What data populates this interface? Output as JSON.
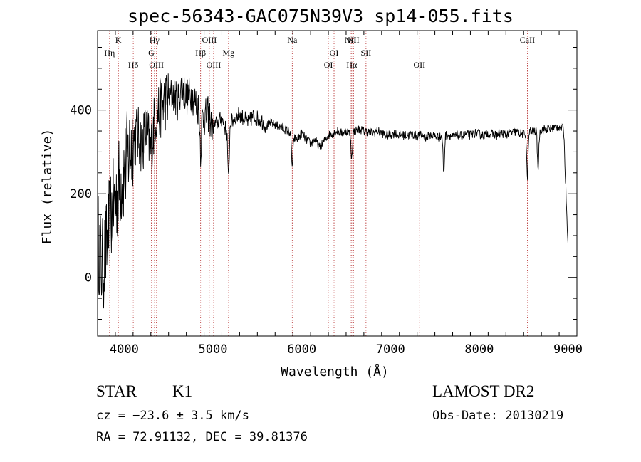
{
  "title": "spec-56343-GAC075N39V3_sp14-055.fits",
  "info": {
    "class": "STAR",
    "subclass": "K1",
    "survey": "LAMOST DR2",
    "cz": "cz = −23.6 ± 3.5 km/s",
    "obs_date": "Obs-Date: 20130219",
    "radec": "RA =  72.91132, DEC =  39.81376"
  },
  "chart_data": {
    "type": "line",
    "xlabel": "Wavelength (Å)",
    "ylabel": "Flux (relative)",
    "xlim": [
      3700,
      9100
    ],
    "ylim": [
      -140,
      590
    ],
    "xticks": [
      4000,
      5000,
      6000,
      7000,
      8000,
      9000
    ],
    "yticks": [
      0,
      200,
      400
    ],
    "line_color": "#000000",
    "marker_color": "#b22222",
    "line_markers": [
      {
        "label": "Hη",
        "wavelength": 3835,
        "row": 2
      },
      {
        "label": "K",
        "wavelength": 3934,
        "row": 1
      },
      {
        "label": "Hδ",
        "wavelength": 4102,
        "row": 3
      },
      {
        "label": "Hγ",
        "wavelength": 4341,
        "row": 1
      },
      {
        "label": "G",
        "wavelength": 4305,
        "row": 2
      },
      {
        "label": "OIII",
        "wavelength": 4363,
        "row": 3
      },
      {
        "label": "Hβ",
        "wavelength": 4861,
        "row": 2
      },
      {
        "label": "OIII",
        "wavelength": 4959,
        "row": 1
      },
      {
        "label": "OIII",
        "wavelength": 5007,
        "row": 3
      },
      {
        "label": "Mg",
        "wavelength": 5175,
        "row": 2
      },
      {
        "label": "Na",
        "wavelength": 5893,
        "row": 1
      },
      {
        "label": "OI",
        "wavelength": 6300,
        "row": 3
      },
      {
        "label": "OI",
        "wavelength": 6364,
        "row": 2
      },
      {
        "label": "NII",
        "wavelength": 6548,
        "row": 1
      },
      {
        "label": "NII",
        "wavelength": 6583,
        "row": 1
      },
      {
        "label": "Hα",
        "wavelength": 6563,
        "row": 3
      },
      {
        "label": "SII",
        "wavelength": 6724,
        "row": 2
      },
      {
        "label": "OII",
        "wavelength": 7325,
        "row": 3
      },
      {
        "label": "CaII",
        "wavelength": 8542,
        "row": 1
      }
    ],
    "series": [
      {
        "x": [
          3700,
          3750,
          3800,
          3850,
          3900,
          3950,
          4000,
          4050,
          4100,
          4150,
          4200,
          4250,
          4300,
          4350,
          4400,
          4450,
          4500,
          4550,
          4600,
          4650,
          4700,
          4750,
          4800,
          4850,
          4900,
          4950,
          5000,
          5050,
          5100,
          5150,
          5200,
          5250,
          5300,
          5350,
          5400,
          5450,
          5500,
          5550,
          5600,
          5650,
          5700,
          5750,
          5800,
          5850,
          5900,
          5950,
          6000,
          6050,
          6100,
          6150,
          6200,
          6250,
          6300,
          6350,
          6400,
          6450,
          6500,
          6550,
          6600,
          6650,
          6700,
          6750,
          6800,
          6850,
          6900,
          6950,
          7000,
          7050,
          7100,
          7150,
          7200,
          7250,
          7300,
          7350,
          7400,
          7450,
          7500,
          7550,
          7600,
          7650,
          7700,
          7750,
          7800,
          7850,
          7900,
          7950,
          8000,
          8050,
          8100,
          8150,
          8200,
          8250,
          8300,
          8350,
          8400,
          8450,
          8500,
          8550,
          8600,
          8650,
          8700,
          8750,
          8800,
          8850,
          8900,
          8950,
          9000
        ],
        "y": [
          100,
          20,
          70,
          150,
          180,
          230,
          250,
          300,
          330,
          340,
          320,
          350,
          300,
          390,
          400,
          420,
          430,
          440,
          420,
          460,
          430,
          440,
          420,
          400,
          380,
          390,
          360,
          370,
          380,
          350,
          370,
          380,
          390,
          380,
          370,
          385,
          380,
          375,
          360,
          370,
          365,
          360,
          355,
          350,
          335,
          330,
          345,
          330,
          320,
          330,
          310,
          325,
          340,
          345,
          350,
          345,
          350,
          345,
          350,
          355,
          350,
          348,
          345,
          350,
          345,
          340,
          340,
          345,
          340,
          340,
          340,
          342,
          338,
          340,
          335,
          340,
          338,
          335,
          340,
          342,
          335,
          340,
          338,
          342,
          340,
          345,
          342,
          340,
          345,
          342,
          340,
          345,
          342,
          345,
          348,
          345,
          342,
          350,
          348,
          350,
          352,
          355,
          355,
          358,
          360,
          355,
          80
        ]
      }
    ],
    "features": [
      {
        "wavelength": 4861,
        "depth": 90
      },
      {
        "wavelength": 5175,
        "depth": 130
      },
      {
        "wavelength": 5893,
        "depth": 70
      },
      {
        "wavelength": 6563,
        "depth": 60
      },
      {
        "wavelength": 7600,
        "depth": 90
      },
      {
        "wavelength": 8542,
        "depth": 110
      },
      {
        "wavelength": 8662,
        "depth": 90
      }
    ]
  }
}
